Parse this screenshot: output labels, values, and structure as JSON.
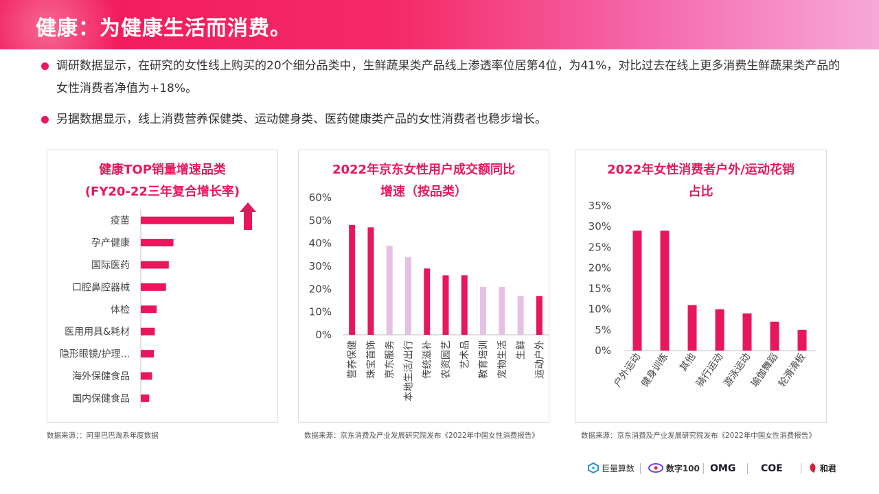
{
  "header": {
    "title": "健康：为健康生活而消费。"
  },
  "bullets": [
    "调研数据显示，在研究的女性线上购买的20个细分品类中，生鲜蔬果类产品线上渗透率位居第4位，为41%，对比过去在线上更多消费生鲜蔬果类产品的女性消费者净值为+18%。",
    "另据数据显示，线上消费营养保健类、运动健身类、医药健康类产品的女性消费者也稳步增长。"
  ],
  "panels": [
    {
      "title_line1": "健康TOP销量增速品类",
      "title_line2": "(FY20-22三年复合增长率)",
      "source": "数据来源：：阿里巴巴淘系年度数据"
    },
    {
      "title_line1": "2022年京东女性用户成交额同比",
      "title_line2": "增速（按品类）",
      "source": "数据来源：京东消费及产业发展研究院发布《2022年中国女性消费报告》"
    },
    {
      "title_line1": "2022年女性消费者户外/运动花销",
      "title_line2": "占比",
      "source": "数据来源：京东消费及产业发展研究院发布《2022年中国女性消费报告》"
    }
  ],
  "chart_data": [
    {
      "type": "bar",
      "orientation": "horizontal",
      "title": "健康TOP销量增速品类 (FY20-22三年复合增长率)",
      "categories": [
        "疫苗",
        "孕产健康",
        "国际医药",
        "口腔鼻腔器械",
        "体检",
        "医用用具&耗材",
        "隐形眼镜/护理...",
        "海外保健食品",
        "国内保健食品"
      ],
      "values": [
        100,
        35,
        30,
        27,
        17,
        15,
        14,
        12,
        9
      ],
      "value_scale": "relative (no axis printed)",
      "color": "#e8175d",
      "annotation": "up-arrow-icon next to top bar"
    },
    {
      "type": "bar",
      "title": "2022年京东女性用户成交额同比增速（按品类）",
      "categories": [
        "营养保健",
        "珠宝首饰",
        "京东服务",
        "本地生活/出行",
        "传统滋补",
        "农资园艺",
        "艺术品",
        "教育培训",
        "宠物生活",
        "生鲜",
        "运动户外"
      ],
      "values": [
        0.48,
        0.47,
        0.39,
        0.34,
        0.29,
        0.26,
        0.26,
        0.21,
        0.21,
        0.17,
        0.17
      ],
      "highlight": [
        true,
        true,
        false,
        false,
        true,
        true,
        true,
        false,
        false,
        false,
        true
      ],
      "colors": {
        "highlight": "#e8175d",
        "other": "#e5c2e3"
      },
      "ylim": [
        0,
        0.6
      ],
      "yticks": [
        "0%",
        "10%",
        "20%",
        "30%",
        "40%",
        "50%",
        "60%"
      ],
      "grid": false
    },
    {
      "type": "bar",
      "title": "2022年女性消费者户外/运动花销占比",
      "categories": [
        "户外运动",
        "健身训练",
        "其他",
        "骑行运动",
        "游泳运动",
        "瑜伽舞蹈",
        "轮滑滑板"
      ],
      "values": [
        0.29,
        0.29,
        0.11,
        0.1,
        0.09,
        0.07,
        0.05
      ],
      "color": "#e8175d",
      "ylim": [
        0,
        0.35
      ],
      "yticks": [
        "0%",
        "5%",
        "10%",
        "15%",
        "20%",
        "25%",
        "30%",
        "35%"
      ],
      "grid": false
    }
  ],
  "logos": [
    {
      "name": "juliang-logo-icon",
      "text": "巨量算数"
    },
    {
      "name": "shuzi-logo-icon",
      "text": "数字100"
    },
    {
      "name": "omg-logo",
      "text": "OMG"
    },
    {
      "name": "coe-logo",
      "text": "COE"
    },
    {
      "name": "hejun-logo-icon",
      "text": "和君"
    }
  ]
}
